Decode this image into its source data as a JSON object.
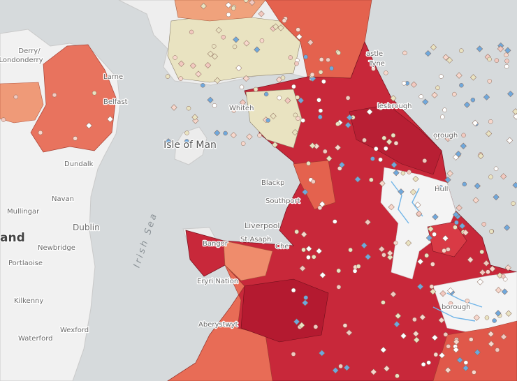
{
  "places": {
    "derry": "Derry/",
    "londonderry": "Londonderry",
    "larne": "Larne",
    "belfast": "Belfast",
    "dundalk": "Dundalk",
    "navan": "Navan",
    "mullingar": "Mullingar",
    "dublin": "Dublin",
    "ireland": "and",
    "newbridge": "Newbridge",
    "portlaoise": "Portlaoise",
    "kilkenny": "Kilkenny",
    "wexford": "Wexford",
    "waterford": "Waterford",
    "isle_of_man": "Isle of Man",
    "irish_sea": "Irish Sea",
    "whitehaven": "Whiteh",
    "blackpool": "Blackp",
    "southport": "Southport",
    "liverpool": "Liverpool",
    "st_asaph": "St Asaph",
    "chester": "Che",
    "bangor": "Bangor",
    "eryri": "Eryri Nation",
    "aberystwyth": "Aberystwyt",
    "newcastle": "astle",
    "tyne": "Tyne",
    "middlesbrough": "lesbrough",
    "scarborough": "orough",
    "hull": "Hull",
    "peterborough": "borough"
  }
}
